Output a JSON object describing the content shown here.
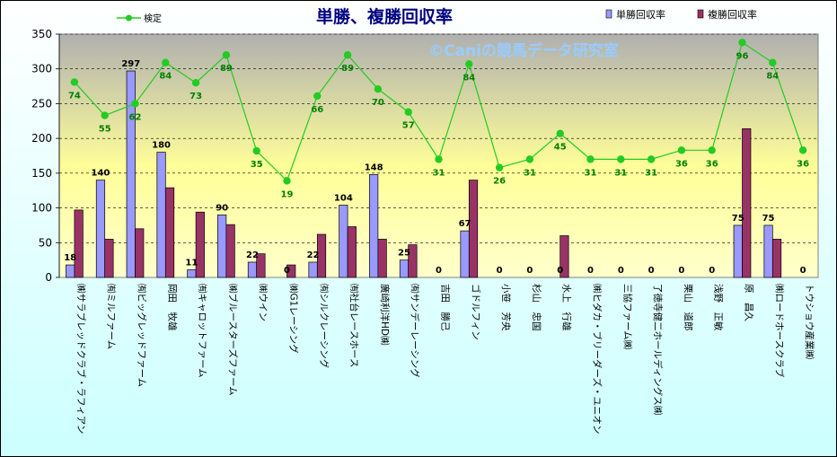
{
  "chart_data": {
    "type": "bar",
    "title": "単勝、複勝回収率",
    "watermark": "©Caniの競馬データ研究室",
    "categories": [
      "㈱サラブレッドクラブ・ラフィアン",
      "㈲ミルファーム",
      "㈲ビッグレッドファーム",
      "岡田　牧雄",
      "㈲キャロットファーム",
      "㈱ブルースターズファーム",
      "㈱ウイン",
      "㈱G1レーシング",
      "㈲シルクレーシング",
      "㈲社台レースホース",
      "廣崎利洋HD㈱",
      "㈲サンデーレーシング",
      "吉田　勝己",
      "ゴドルフィン",
      "小笹　芳央",
      "杉山　忠国",
      "水上　行雄",
      "㈱ヒダカ・ブリーダーズ・ユニオン",
      "三協ファーム㈱",
      "了徳寺健二ホールディングス㈱",
      "栗山　道郎",
      "浅野　正敏",
      "原　昌久",
      "㈱ロードホースクラブ",
      "トウショウ産業㈱"
    ],
    "series": [
      {
        "name": "単勝回収率",
        "kind": "bar",
        "color": "#9999ff",
        "values": [
          18,
          140,
          297,
          180,
          11,
          90,
          22,
          0,
          22,
          104,
          148,
          25,
          0,
          67,
          0,
          0,
          0,
          0,
          0,
          0,
          0,
          0,
          75,
          75,
          0
        ],
        "labels": [
          "18",
          "140",
          "297",
          "180",
          "11",
          "90",
          "22",
          "0",
          "22",
          "104",
          "148",
          "25",
          "0",
          "67",
          "0",
          "0",
          "0",
          "0",
          "0",
          "0",
          "0",
          "0",
          "75",
          "75",
          "0"
        ]
      },
      {
        "name": "複勝回収率",
        "kind": "bar",
        "color": "#993366",
        "values": [
          97,
          55,
          70,
          129,
          94,
          76,
          34,
          18,
          62,
          73,
          55,
          47,
          0,
          140,
          0,
          0,
          60,
          0,
          0,
          0,
          0,
          0,
          214,
          55,
          0
        ]
      },
      {
        "name": "検定",
        "kind": "line",
        "color": "#22cc22",
        "values": [
          281,
          233,
          250,
          309,
          280,
          320,
          182,
          139,
          261,
          320,
          271,
          238,
          170,
          307,
          158,
          170,
          207,
          170,
          170,
          170,
          183,
          183,
          338,
          309,
          183
        ],
        "labels": [
          "74",
          "55",
          "62",
          "84",
          "73",
          "89",
          "35",
          "19",
          "66",
          "89",
          "70",
          "57",
          "31",
          "84",
          "26",
          "31",
          "45",
          "31",
          "31",
          "31",
          "36",
          "36",
          "96",
          "84",
          "36"
        ]
      }
    ],
    "yticks": [
      "0",
      "50",
      "100",
      "150",
      "200",
      "250",
      "300",
      "350"
    ],
    "ylim": [
      0,
      350
    ],
    "grid": true,
    "legend": "top"
  },
  "colors": {
    "plot_bg_top": "#b0b0b0",
    "plot_bg_mid": "#ffff99",
    "outer_bg_top": "#ffffff",
    "outer_bg_bottom": "#ccffff",
    "title": "#000080",
    "watermark": "#99ccff",
    "line": "#22cc22",
    "line_label": "#008000"
  }
}
